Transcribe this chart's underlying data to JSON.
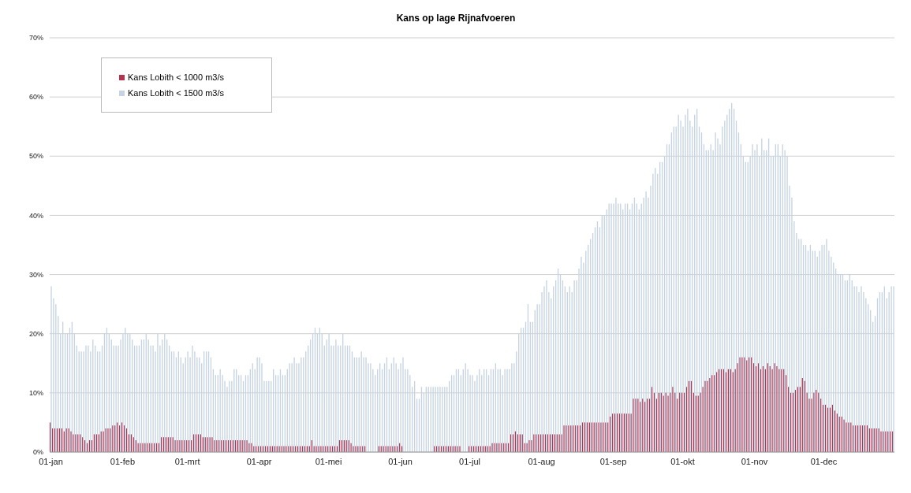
{
  "chart_data": {
    "type": "bar",
    "title": "Kans op lage Rijnafvoeren",
    "categories": [
      "01-jan",
      null,
      null,
      null,
      null,
      null,
      null,
      null,
      null,
      null,
      null,
      null,
      null,
      null,
      null,
      null,
      null,
      null,
      null,
      null,
      null,
      null,
      null,
      null,
      null,
      null,
      null,
      null,
      null,
      null,
      null,
      "01-feb",
      null,
      null,
      null,
      null,
      null,
      null,
      null,
      null,
      null,
      null,
      null,
      null,
      null,
      null,
      null,
      null,
      null,
      null,
      null,
      null,
      null,
      null,
      null,
      null,
      null,
      null,
      null,
      "01-mrt",
      null,
      null,
      null,
      null,
      null,
      null,
      null,
      null,
      null,
      null,
      null,
      null,
      null,
      null,
      null,
      null,
      null,
      null,
      null,
      null,
      null,
      null,
      null,
      null,
      null,
      null,
      null,
      null,
      null,
      null,
      "01-apr",
      null,
      null,
      null,
      null,
      null,
      null,
      null,
      null,
      null,
      null,
      null,
      null,
      null,
      null,
      null,
      null,
      null,
      null,
      null,
      null,
      null,
      null,
      null,
      null,
      null,
      null,
      null,
      null,
      null,
      "01-mei",
      null,
      null,
      null,
      null,
      null,
      null,
      null,
      null,
      null,
      null,
      null,
      null,
      null,
      null,
      null,
      null,
      null,
      null,
      null,
      null,
      null,
      null,
      null,
      null,
      null,
      null,
      null,
      null,
      null,
      null,
      "01-jun",
      null,
      null,
      null,
      null,
      null,
      null,
      null,
      null,
      null,
      null,
      null,
      null,
      null,
      null,
      null,
      null,
      null,
      null,
      null,
      null,
      null,
      null,
      null,
      null,
      null,
      null,
      null,
      null,
      null,
      "01-jul",
      null,
      null,
      null,
      null,
      null,
      null,
      null,
      null,
      null,
      null,
      null,
      null,
      null,
      null,
      null,
      null,
      null,
      null,
      null,
      null,
      null,
      null,
      null,
      null,
      null,
      null,
      null,
      null,
      null,
      null,
      "01-aug",
      null,
      null,
      null,
      null,
      null,
      null,
      null,
      null,
      null,
      null,
      null,
      null,
      null,
      null,
      null,
      null,
      null,
      null,
      null,
      null,
      null,
      null,
      null,
      null,
      null,
      null,
      null,
      null,
      null,
      null,
      "01-sep",
      null,
      null,
      null,
      null,
      null,
      null,
      null,
      null,
      null,
      null,
      null,
      null,
      null,
      null,
      null,
      null,
      null,
      null,
      null,
      null,
      null,
      null,
      null,
      null,
      null,
      null,
      null,
      null,
      null,
      "01-okt",
      null,
      null,
      null,
      null,
      null,
      null,
      null,
      null,
      null,
      null,
      null,
      null,
      null,
      null,
      null,
      null,
      null,
      null,
      null,
      null,
      null,
      null,
      null,
      null,
      null,
      null,
      null,
      null,
      null,
      null,
      "01-nov",
      null,
      null,
      null,
      null,
      null,
      null,
      null,
      null,
      null,
      null,
      null,
      null,
      null,
      null,
      null,
      null,
      null,
      null,
      null,
      null,
      null,
      null,
      null,
      null,
      null,
      null,
      null,
      null,
      null,
      "01-dec",
      null,
      null,
      null,
      null,
      null,
      null,
      null,
      null,
      null,
      null,
      null,
      null,
      null,
      null,
      null,
      null,
      null,
      null,
      null,
      null,
      null,
      null,
      null,
      null,
      null,
      null,
      null,
      null,
      null,
      null
    ],
    "series": [
      {
        "name": "Kans Lobith < 1000 m3/s",
        "color": "#b2354f",
        "values": [
          5,
          4,
          4,
          4,
          4,
          4,
          3.5,
          4,
          4,
          3.5,
          3,
          3,
          3,
          3,
          2.5,
          2,
          1.5,
          2,
          2,
          3,
          3,
          3,
          3.5,
          3.5,
          4,
          4,
          4,
          4.5,
          4.5,
          5,
          4.5,
          5,
          4.5,
          4,
          3,
          3,
          2.5,
          2,
          1.5,
          1.5,
          1.5,
          1.5,
          1.5,
          1.5,
          1.5,
          1.5,
          1.5,
          1.5,
          2.5,
          2.5,
          2.5,
          2.5,
          2.5,
          2.5,
          2,
          2,
          2,
          2,
          2,
          2,
          2,
          2,
          3,
          3,
          3,
          3,
          2.5,
          2.5,
          2.5,
          2.5,
          2.5,
          2,
          2,
          2,
          2,
          2,
          2,
          2,
          2,
          2,
          2,
          2,
          2,
          2,
          2,
          2,
          1.5,
          1.5,
          1,
          1,
          1,
          1,
          1,
          1,
          1,
          1,
          1,
          1,
          1,
          1,
          1,
          1,
          1,
          1,
          1,
          1,
          1,
          1,
          1,
          1,
          1,
          1,
          1,
          2,
          1,
          1,
          1,
          1,
          1,
          1,
          1,
          1,
          1,
          1,
          1,
          2,
          2,
          2,
          2,
          2,
          1.5,
          1,
          1,
          1,
          1,
          1,
          1,
          0,
          0,
          0,
          0,
          0,
          1,
          1,
          1,
          1,
          1,
          1,
          1,
          1,
          1,
          1.5,
          1,
          0,
          0,
          0,
          0,
          0,
          0,
          0,
          0,
          0,
          0,
          0,
          0,
          0,
          1,
          1,
          1,
          1,
          1,
          1,
          1,
          1,
          1,
          1,
          1,
          1,
          0,
          0,
          0,
          1,
          1,
          1,
          1,
          1,
          1,
          1,
          1,
          1,
          1,
          1.5,
          1.5,
          1.5,
          1.5,
          1.5,
          1.5,
          1.5,
          1.5,
          3,
          3,
          3.5,
          3,
          3,
          3,
          1.5,
          1.5,
          2,
          2,
          3,
          3,
          3,
          3,
          3,
          3,
          3,
          3,
          3,
          3,
          3,
          3,
          3,
          4.5,
          4.5,
          4.5,
          4.5,
          4.5,
          4.5,
          4.5,
          4.5,
          5,
          5,
          5,
          5,
          5,
          5,
          5,
          5,
          5,
          5,
          5,
          5,
          6,
          6.5,
          6.5,
          6.5,
          6.5,
          6.5,
          6.5,
          6.5,
          6.5,
          6.5,
          9,
          9,
          9,
          8.5,
          9,
          8.5,
          9,
          9,
          11,
          10,
          9,
          10,
          10,
          9.5,
          10,
          9.5,
          10,
          11,
          10,
          9,
          10,
          10,
          10,
          11,
          12,
          12,
          10,
          9.5,
          9.5,
          10,
          11,
          12,
          12,
          12.5,
          13,
          13,
          13.5,
          14,
          14,
          14,
          13.5,
          14,
          14,
          13.5,
          14,
          15,
          16,
          16,
          16,
          15.5,
          16,
          16,
          15,
          14.5,
          15,
          14,
          14.5,
          14,
          15,
          14.5,
          14,
          15,
          14.5,
          14,
          14,
          14,
          13,
          11,
          10,
          10,
          10.5,
          11,
          11,
          12.5,
          12,
          10,
          9,
          9,
          10,
          10.5,
          10,
          9,
          8,
          8,
          7.5,
          7.5,
          8,
          7,
          6.5,
          6,
          6,
          5.5,
          5,
          5,
          5,
          4.5,
          4.5,
          4.5,
          4.5,
          4.5,
          4.5,
          4.5,
          4,
          4,
          4,
          4,
          4,
          3.5,
          3.5,
          3.5,
          3.5,
          3.5,
          3.5
        ]
      },
      {
        "name": "Kans Lobith < 1500 m3/s",
        "color": "#c5d3e3",
        "values": [
          28,
          26,
          25,
          23,
          20,
          22,
          20,
          20,
          21,
          22,
          20,
          18,
          17,
          17,
          17,
          18,
          18,
          17,
          19,
          18,
          17,
          17,
          18,
          20,
          21,
          20,
          19,
          18,
          18,
          18,
          19,
          20,
          21,
          20,
          20,
          19,
          18,
          18,
          18,
          19,
          19,
          20,
          19,
          18,
          18,
          17,
          20,
          18,
          19,
          20,
          19,
          18,
          17,
          17,
          16,
          17,
          16,
          15,
          16,
          17,
          16,
          18,
          17,
          16,
          16,
          15,
          17,
          17,
          17,
          16,
          14,
          13,
          13,
          14,
          13,
          12,
          11,
          12,
          12,
          14,
          14,
          13,
          13,
          12,
          13,
          13,
          14,
          15,
          14,
          16,
          16,
          15,
          12,
          12,
          12,
          12,
          14,
          13,
          13,
          14,
          13,
          13,
          14,
          15,
          15,
          16,
          15,
          15,
          16,
          16,
          17,
          18,
          19,
          20,
          21,
          20,
          21,
          20,
          18,
          19,
          20,
          18,
          18,
          19,
          18,
          18,
          20,
          18,
          18,
          18,
          17,
          16,
          16,
          16,
          17,
          16,
          16,
          15,
          15,
          14,
          13,
          14,
          15,
          14,
          15,
          16,
          14,
          15,
          16,
          15,
          14,
          15,
          16,
          14,
          14,
          13,
          11,
          12,
          9,
          9,
          11,
          10,
          11,
          11,
          11,
          11,
          11,
          11,
          11,
          11,
          11,
          11,
          12,
          13,
          13,
          14,
          14,
          13,
          14,
          15,
          14,
          13,
          13,
          12,
          13,
          14,
          13,
          14,
          14,
          13,
          14,
          14,
          15,
          14,
          14,
          13,
          14,
          14,
          14,
          15,
          15,
          17,
          20,
          21,
          21,
          22,
          25,
          22,
          22,
          24,
          25,
          25,
          27,
          28,
          29,
          27,
          26,
          28,
          29,
          31,
          30,
          29,
          28,
          27,
          28,
          27,
          29,
          29,
          31,
          33,
          32,
          34,
          35,
          36,
          37,
          38,
          39,
          38,
          40,
          40,
          41,
          42,
          42,
          42,
          43,
          42,
          42,
          41,
          42,
          42,
          41,
          42,
          43,
          42,
          41,
          42,
          43,
          44,
          43,
          45,
          47,
          48,
          47,
          49,
          49,
          50,
          52,
          52,
          54,
          55,
          55,
          57,
          56,
          55,
          57,
          58,
          56,
          55,
          57,
          58,
          55,
          54,
          52,
          51,
          51,
          52,
          51,
          54,
          53,
          52,
          55,
          56,
          57,
          58,
          59,
          58,
          56,
          54,
          52,
          50,
          49,
          49,
          50,
          52,
          51,
          52,
          50,
          53,
          51,
          51,
          53,
          50,
          50,
          52,
          52,
          50,
          52,
          51,
          50,
          45,
          43,
          39,
          37,
          36,
          36,
          35,
          35,
          34,
          35,
          34,
          34,
          33,
          34,
          35,
          35,
          36,
          34,
          33,
          32,
          31,
          30,
          30,
          30,
          29,
          29,
          30,
          29,
          28,
          28,
          27,
          28,
          27,
          26,
          25,
          24,
          22,
          23,
          26,
          27,
          27,
          28,
          26,
          27,
          28,
          28
        ]
      }
    ],
    "ylim": [
      0,
      70
    ],
    "yticks": [
      {
        "value": 0,
        "label": "0%"
      },
      {
        "value": 10,
        "label": "10%"
      },
      {
        "value": 20,
        "label": "20%"
      },
      {
        "value": 30,
        "label": "30%"
      },
      {
        "value": 40,
        "label": "40%"
      },
      {
        "value": 50,
        "label": "50%"
      },
      {
        "value": 60,
        "label": "60%"
      },
      {
        "value": 70,
        "label": "70%"
      }
    ],
    "grid": "y",
    "legend": "top left"
  }
}
